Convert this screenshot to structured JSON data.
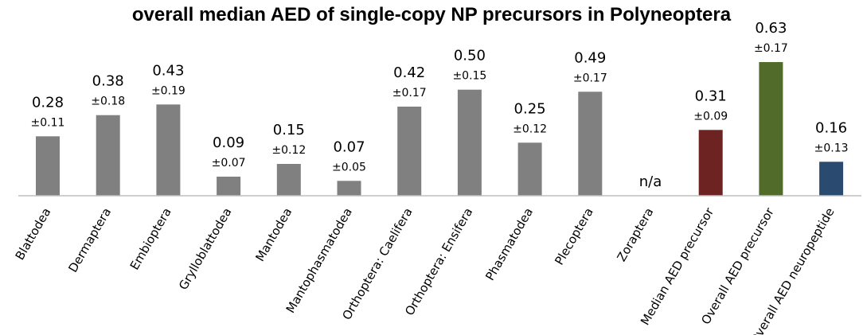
{
  "chart_data": {
    "type": "bar",
    "title": "overall median AED of single-copy NP precursors in Polyneoptera",
    "xlabel": "",
    "ylabel": "",
    "ylim": [
      0,
      0.7
    ],
    "grid": false,
    "legend": "none",
    "categories": [
      "Blattodea",
      "Dermaptera",
      "Embioptera",
      "Grylloblattodea",
      "Mantodea",
      "Mantophasmatodea",
      "Orthoptera: Caelifera",
      "Orthoptera: Ensifera",
      "Phasmatodea",
      "Plecoptera",
      "Zoraptera",
      "Median AED precursor",
      "Overall AED precursor",
      "Overall AED neuropeptide"
    ],
    "values": [
      0.28,
      0.38,
      0.43,
      0.09,
      0.15,
      0.07,
      0.42,
      0.5,
      0.25,
      0.49,
      null,
      0.31,
      0.63,
      0.16
    ],
    "value_labels": [
      "0.28",
      "0.38",
      "0.43",
      "0.09",
      "0.15",
      "0.07",
      "0.42",
      "0.50",
      "0.25",
      "0.49",
      "n/a",
      "0.31",
      "0.63",
      "0.16"
    ],
    "error_labels": [
      "±0.11",
      "±0.18",
      "±0.19",
      "±0.07",
      "±0.12",
      "±0.05",
      "±0.17",
      "±0.15",
      "±0.12",
      "±0.17",
      "",
      "±0.09",
      "±0.17",
      "±0.13"
    ],
    "colors": [
      "#808080",
      "#808080",
      "#808080",
      "#808080",
      "#808080",
      "#808080",
      "#808080",
      "#808080",
      "#808080",
      "#808080",
      "#808080",
      "#6e2323",
      "#516b2a",
      "#2b4a70"
    ],
    "axis_color": "#bfbfbf"
  }
}
